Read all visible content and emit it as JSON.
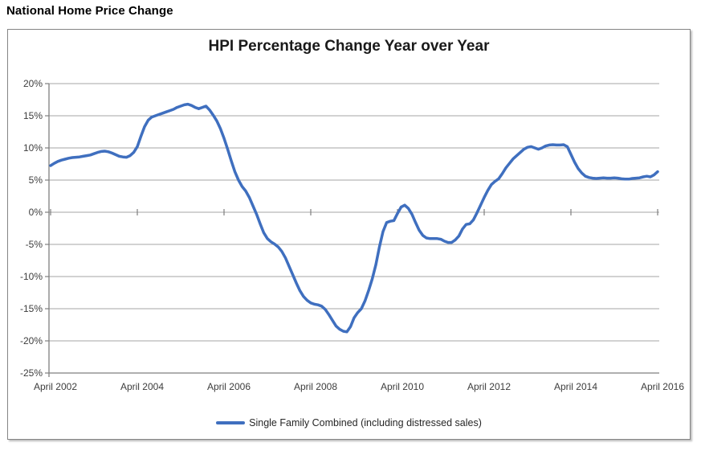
{
  "page": {
    "heading": "National Home Price Change"
  },
  "chart": {
    "title": "HPI Percentage Change Year over Year",
    "legend_label": "Single Family Combined (including distressed sales)",
    "colors": {
      "line": "#3F6FBF",
      "gridline": "#A6A6A6",
      "axis": "#7F7F7F",
      "tick_text": "#3d3d3d",
      "title_text": "#1a1a1a",
      "border": "#858585"
    }
  },
  "chart_data": {
    "type": "line",
    "title": "HPI Percentage Change Year over Year",
    "x_start": "April 2002",
    "x_end": "April 2016",
    "x_interval": "monthly",
    "x_tick_labels": [
      "April 2002",
      "April 2004",
      "April 2006",
      "April 2008",
      "April 2010",
      "April 2012",
      "April 2014",
      "April 2016"
    ],
    "x_tick_every_months": 24,
    "y_tick_labels": [
      "20%",
      "15%",
      "10%",
      "5%",
      "0%",
      "-5%",
      "-10%",
      "-15%",
      "-20%",
      "-25%"
    ],
    "ylim": [
      -25,
      20
    ],
    "y_step": 5,
    "y_unit": "%",
    "grid": true,
    "legend_position": "bottom",
    "series": [
      {
        "name": "Single Family Combined (including distressed sales)",
        "color": "#3F6FBF",
        "values": [
          7.25,
          7.6,
          7.9,
          8.1,
          8.25,
          8.4,
          8.5,
          8.55,
          8.6,
          8.7,
          8.8,
          8.9,
          9.1,
          9.3,
          9.45,
          9.5,
          9.4,
          9.2,
          8.95,
          8.7,
          8.6,
          8.55,
          8.8,
          9.3,
          10.2,
          11.8,
          13.3,
          14.3,
          14.8,
          15.0,
          15.2,
          15.4,
          15.6,
          15.8,
          16.0,
          16.3,
          16.5,
          16.7,
          16.8,
          16.6,
          16.3,
          16.1,
          16.3,
          16.5,
          15.9,
          15.1,
          14.2,
          13.0,
          11.5,
          9.8,
          8.0,
          6.3,
          5.0,
          4.0,
          3.3,
          2.3,
          1.0,
          -0.3,
          -1.8,
          -3.2,
          -4.1,
          -4.6,
          -4.95,
          -5.4,
          -6.1,
          -7.1,
          -8.4,
          -9.7,
          -11.0,
          -12.2,
          -13.1,
          -13.7,
          -14.1,
          -14.3,
          -14.4,
          -14.6,
          -15.1,
          -15.9,
          -16.8,
          -17.7,
          -18.2,
          -18.5,
          -18.6,
          -17.8,
          -16.4,
          -15.6,
          -15.0,
          -13.8,
          -12.2,
          -10.4,
          -8.2,
          -5.4,
          -3.0,
          -1.6,
          -1.4,
          -1.3,
          -0.2,
          0.8,
          1.1,
          0.6,
          -0.3,
          -1.6,
          -2.8,
          -3.6,
          -4.0,
          -4.1,
          -4.1,
          -4.1,
          -4.2,
          -4.5,
          -4.7,
          -4.7,
          -4.3,
          -3.7,
          -2.6,
          -1.9,
          -1.8,
          -1.2,
          -0.1,
          1.1,
          2.3,
          3.4,
          4.3,
          4.8,
          5.2,
          6.0,
          6.9,
          7.6,
          8.3,
          8.8,
          9.3,
          9.8,
          10.1,
          10.2,
          10.0,
          9.8,
          10.0,
          10.3,
          10.45,
          10.5,
          10.45,
          10.45,
          10.5,
          10.2,
          9.0,
          7.8,
          6.8,
          6.1,
          5.6,
          5.4,
          5.3,
          5.25,
          5.3,
          5.35,
          5.3,
          5.3,
          5.35,
          5.3,
          5.2,
          5.15,
          5.15,
          5.25,
          5.3,
          5.35,
          5.5,
          5.6,
          5.5,
          5.8,
          6.3
        ]
      }
    ]
  }
}
